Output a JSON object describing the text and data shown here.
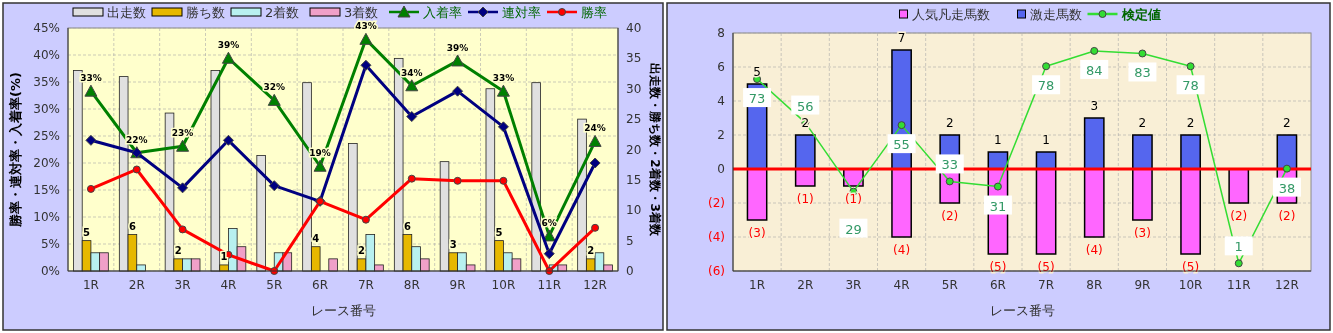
{
  "chart_data": [
    {
      "type": "bar",
      "categories": [
        "1R",
        "2R",
        "3R",
        "4R",
        "5R",
        "6R",
        "7R",
        "8R",
        "9R",
        "10R",
        "11R",
        "12R"
      ],
      "xlabel": "レース番号",
      "ylabel": "勝率・連対率・入着率(%)",
      "y2label": "出走数・勝ち数・2着数・3着数",
      "ylim": [
        0,
        45
      ],
      "yticks": [
        {
          "value": 0,
          "label": "0%"
        },
        {
          "value": 5,
          "label": "5%"
        },
        {
          "value": 10,
          "label": "10%"
        },
        {
          "value": 15,
          "label": "15%"
        },
        {
          "value": 20,
          "label": "20%"
        },
        {
          "value": 25,
          "label": "25%"
        },
        {
          "value": 30,
          "label": "30%"
        },
        {
          "value": 35,
          "label": "35%"
        },
        {
          "value": 40,
          "label": "40%"
        },
        {
          "value": 45,
          "label": "45%"
        }
      ],
      "y2lim": [
        0,
        40
      ],
      "y2ticks": [
        0,
        5,
        10,
        15,
        20,
        25,
        30,
        35,
        40
      ],
      "grid": true,
      "legend": "top",
      "series": [
        {
          "name": "出走数",
          "axis": "y2",
          "color": "#e0e0e0",
          "values": [
            33,
            32,
            26,
            33,
            19,
            31,
            21,
            35,
            18,
            30,
            31,
            25
          ]
        },
        {
          "name": "勝ち数",
          "axis": "y2",
          "color": "#e6b800",
          "values": [
            5,
            6,
            2,
            1,
            0,
            4,
            2,
            6,
            3,
            5,
            0,
            2
          ],
          "value_labels": [
            "5",
            "6",
            "2",
            "1",
            null,
            "4",
            "2",
            "6",
            "3",
            "5",
            null,
            "2"
          ]
        },
        {
          "name": "2着数",
          "axis": "y2",
          "color": "#b8f0f0",
          "values": [
            3,
            1,
            2,
            7,
            3,
            0,
            6,
            4,
            3,
            3,
            1,
            3
          ]
        },
        {
          "name": "3着数",
          "axis": "y2",
          "color": "#f0a0c8",
          "values": [
            3,
            0,
            2,
            4,
            3,
            2,
            1,
            2,
            1,
            2,
            1,
            1
          ]
        },
        {
          "name": "入着率",
          "type": "line",
          "color": "#008000",
          "marker": "triangle",
          "values": [
            33.3,
            21.9,
            23.1,
            39.4,
            31.6,
            19.4,
            42.9,
            34.3,
            38.9,
            33.3,
            6.5,
            24
          ],
          "value_labels": [
            "33%",
            "22%",
            "23%",
            "39%",
            "32%",
            "19%",
            "43%",
            "34%",
            "39%",
            "33%",
            "6%",
            "24%"
          ]
        },
        {
          "name": "連対率",
          "type": "line",
          "color": "#000080",
          "marker": "diamond",
          "values": [
            24.2,
            21.9,
            15.4,
            24.2,
            15.8,
            12.9,
            38.1,
            28.6,
            33.3,
            26.7,
            3.2,
            20
          ]
        },
        {
          "name": "勝率",
          "type": "line",
          "color": "#ff0000",
          "marker": "circle",
          "values": [
            15.2,
            18.8,
            7.7,
            3,
            0,
            12.9,
            9.5,
            17.1,
            16.7,
            16.7,
            0,
            8
          ]
        }
      ]
    },
    {
      "type": "bar",
      "stacked": true,
      "categories": [
        "1R",
        "2R",
        "3R",
        "4R",
        "5R",
        "6R",
        "7R",
        "8R",
        "9R",
        "10R",
        "11R",
        "12R"
      ],
      "xlabel": "レース番号",
      "ylim": [
        -6,
        8
      ],
      "yticks": [
        {
          "value": -6,
          "label": "(6)"
        },
        {
          "value": -4,
          "label": "(4)"
        },
        {
          "value": -2,
          "label": "(2)"
        },
        0,
        2,
        4,
        6,
        8
      ],
      "y2lim": [
        -2,
        91
      ],
      "grid": true,
      "legend": "top",
      "ref_lines": [
        {
          "axis": "y",
          "value": 0,
          "color": "#ff0000"
        }
      ],
      "series": [
        {
          "name": "人気凡走馬数",
          "color": "#ff66ff",
          "values": [
            -3,
            -1,
            -1,
            -4,
            -2,
            -5,
            -5,
            -4,
            -3,
            -5,
            -2,
            -2
          ],
          "value_labels": [
            "(3)",
            "(1)",
            "(1)",
            "(4)",
            "(2)",
            "(5)",
            "(5)",
            "(4)",
            "(3)",
            "(5)",
            "(2)",
            "(2)"
          ]
        },
        {
          "name": "激走馬数",
          "color": "#5566ee",
          "values": [
            5,
            2,
            0,
            7,
            2,
            1,
            1,
            3,
            2,
            2,
            0,
            2
          ],
          "value_labels": [
            "5",
            "2",
            null,
            "7",
            "2",
            "1",
            "1",
            "3",
            "2",
            "2",
            null,
            "2"
          ]
        },
        {
          "name": "検定値",
          "type": "line",
          "axis": "y2",
          "color": "#33dd33",
          "marker": "circle",
          "values": [
            73,
            56,
            29,
            55,
            33,
            31,
            78,
            84,
            83,
            78,
            1,
            38
          ],
          "value_labels": [
            "73",
            "56",
            "29",
            "55",
            "33",
            "31",
            "78",
            "84",
            "83",
            "78",
            "1",
            "38"
          ]
        }
      ]
    }
  ]
}
